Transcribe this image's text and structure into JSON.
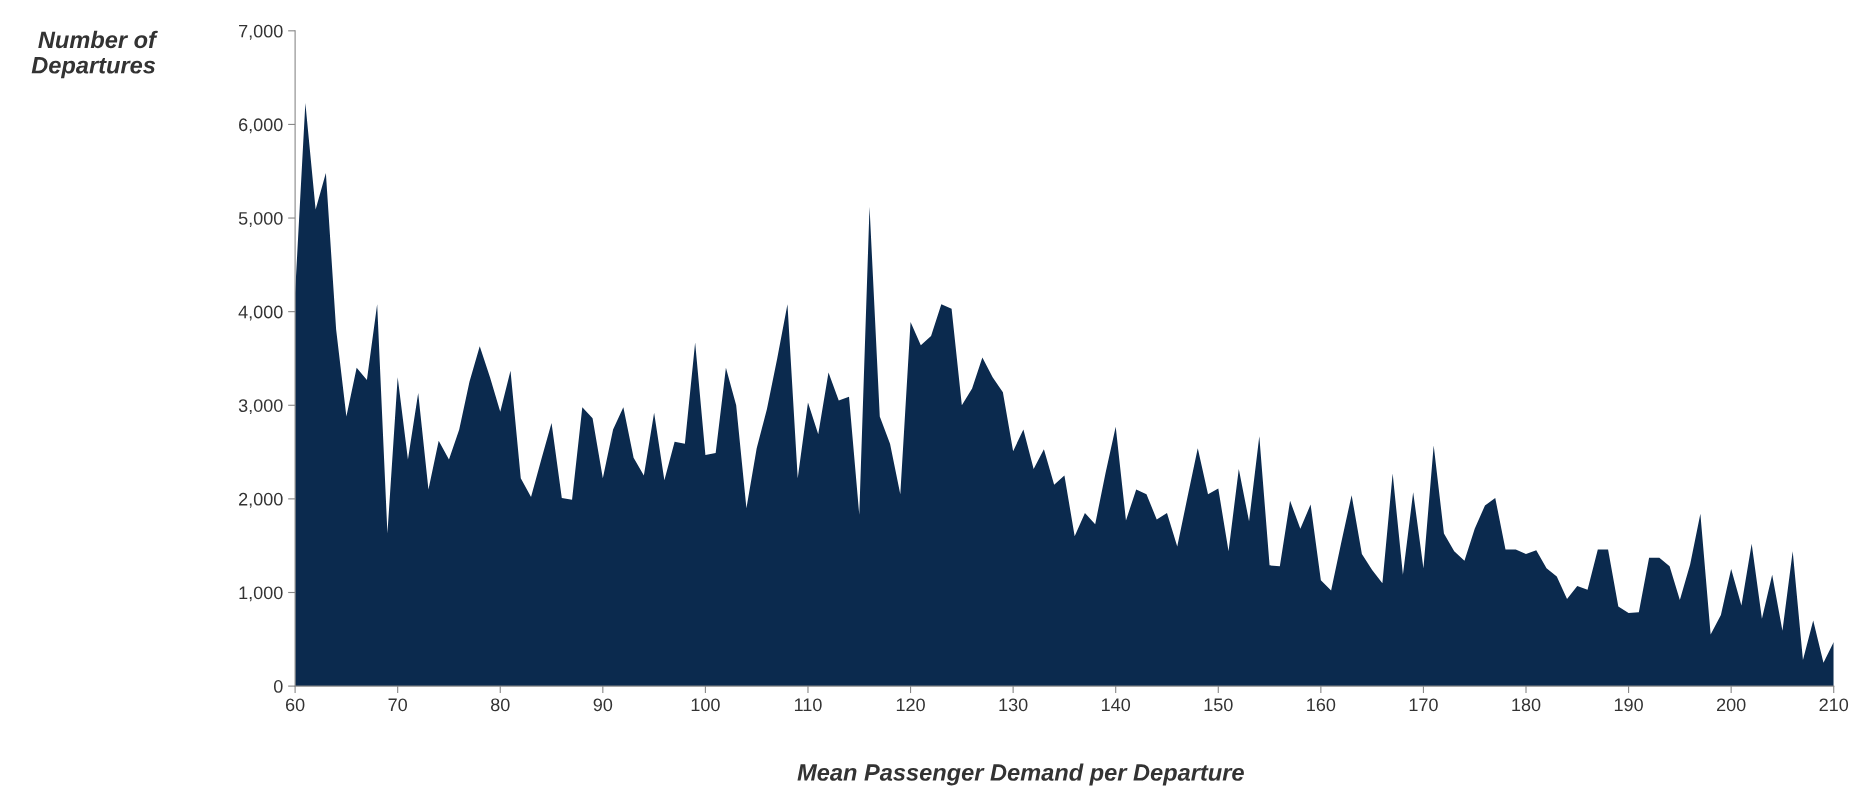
{
  "chart_data": {
    "type": "area",
    "xlabel": "Mean Passenger Demand per Departure",
    "ylabel": "Number of\nDepartures",
    "x": [
      60,
      61,
      62,
      63,
      64,
      65,
      66,
      67,
      68,
      69,
      70,
      71,
      72,
      73,
      74,
      75,
      76,
      77,
      78,
      79,
      80,
      81,
      82,
      83,
      84,
      85,
      86,
      87,
      88,
      89,
      90,
      91,
      92,
      93,
      94,
      95,
      96,
      97,
      98,
      99,
      100,
      101,
      102,
      103,
      104,
      105,
      106,
      107,
      108,
      109,
      110,
      111,
      112,
      113,
      114,
      115,
      116,
      117,
      118,
      119,
      120,
      121,
      122,
      123,
      124,
      125,
      126,
      127,
      128,
      129,
      130,
      131,
      132,
      133,
      134,
      135,
      136,
      137,
      138,
      139,
      140,
      141,
      142,
      143,
      144,
      145,
      146,
      147,
      148,
      149,
      150,
      151,
      152,
      153,
      154,
      155,
      156,
      157,
      158,
      159,
      160,
      161,
      162,
      163,
      164,
      165,
      166,
      167,
      168,
      169,
      170,
      171,
      172,
      173,
      174,
      175,
      176,
      177,
      178,
      179,
      180,
      181,
      182,
      183,
      184,
      185,
      186,
      187,
      188,
      189,
      190,
      191,
      192,
      193,
      194,
      195,
      196,
      197,
      198,
      199,
      200,
      201,
      202,
      203,
      204,
      205,
      206,
      207,
      208,
      209,
      210
    ],
    "series": [
      {
        "color": "#0b2a4e",
        "values": [
          4200,
          6230,
          5090,
          5480,
          3810,
          2880,
          3400,
          3270,
          4080,
          1630,
          3300,
          2420,
          3130,
          2100,
          2620,
          2420,
          2740,
          3250,
          3630,
          3300,
          2930,
          3370,
          2220,
          2020,
          2420,
          2810,
          2010,
          1990,
          2980,
          2860,
          2220,
          2740,
          2980,
          2440,
          2250,
          2920,
          2200,
          2610,
          2590,
          3670,
          2470,
          2490,
          3400,
          3000,
          1900,
          2540,
          2960,
          3500,
          4080,
          2220,
          3030,
          2690,
          3350,
          3050,
          3090,
          1830,
          5120,
          2880,
          2590,
          2050,
          3890,
          3640,
          3740,
          4080,
          4030,
          3000,
          3180,
          3510,
          3300,
          3140,
          2510,
          2740,
          2320,
          2530,
          2150,
          2250,
          1600,
          1850,
          1730,
          2270,
          2770,
          1770,
          2100,
          2050,
          1780,
          1850,
          1490,
          2020,
          2540,
          2050,
          2110,
          1440,
          2320,
          1760,
          2670,
          1290,
          1280,
          1980,
          1680,
          1940,
          1130,
          1020,
          1540,
          2040,
          1410,
          1240,
          1100,
          2270,
          1190,
          2070,
          1260,
          2570,
          1630,
          1440,
          1340,
          1680,
          1930,
          2010,
          1460,
          1460,
          1410,
          1450,
          1260,
          1170,
          930,
          1070,
          1030,
          1460,
          1460,
          850,
          780,
          790,
          1370,
          1370,
          1280,
          920,
          1300,
          1840,
          550,
          760,
          1250,
          860,
          1520,
          720,
          1190,
          590,
          1440,
          280,
          700,
          250,
          470
        ]
      }
    ],
    "xlim": [
      60,
      210
    ],
    "xticks": [
      60,
      70,
      80,
      90,
      100,
      110,
      120,
      130,
      140,
      150,
      160,
      170,
      180,
      190,
      200,
      210
    ],
    "ylim": [
      0,
      7000
    ],
    "yticks": [
      0,
      {
        "value": 1000,
        "label": "1,000"
      },
      {
        "value": 2000,
        "label": "2,000"
      },
      {
        "value": 3000,
        "label": "3,000"
      },
      {
        "value": 4000,
        "label": "4,000"
      },
      {
        "value": 5000,
        "label": "5,000"
      },
      {
        "value": 6000,
        "label": "6,000"
      },
      {
        "value": 7000,
        "label": "7,000"
      }
    ],
    "grid": false,
    "legend": false
  }
}
